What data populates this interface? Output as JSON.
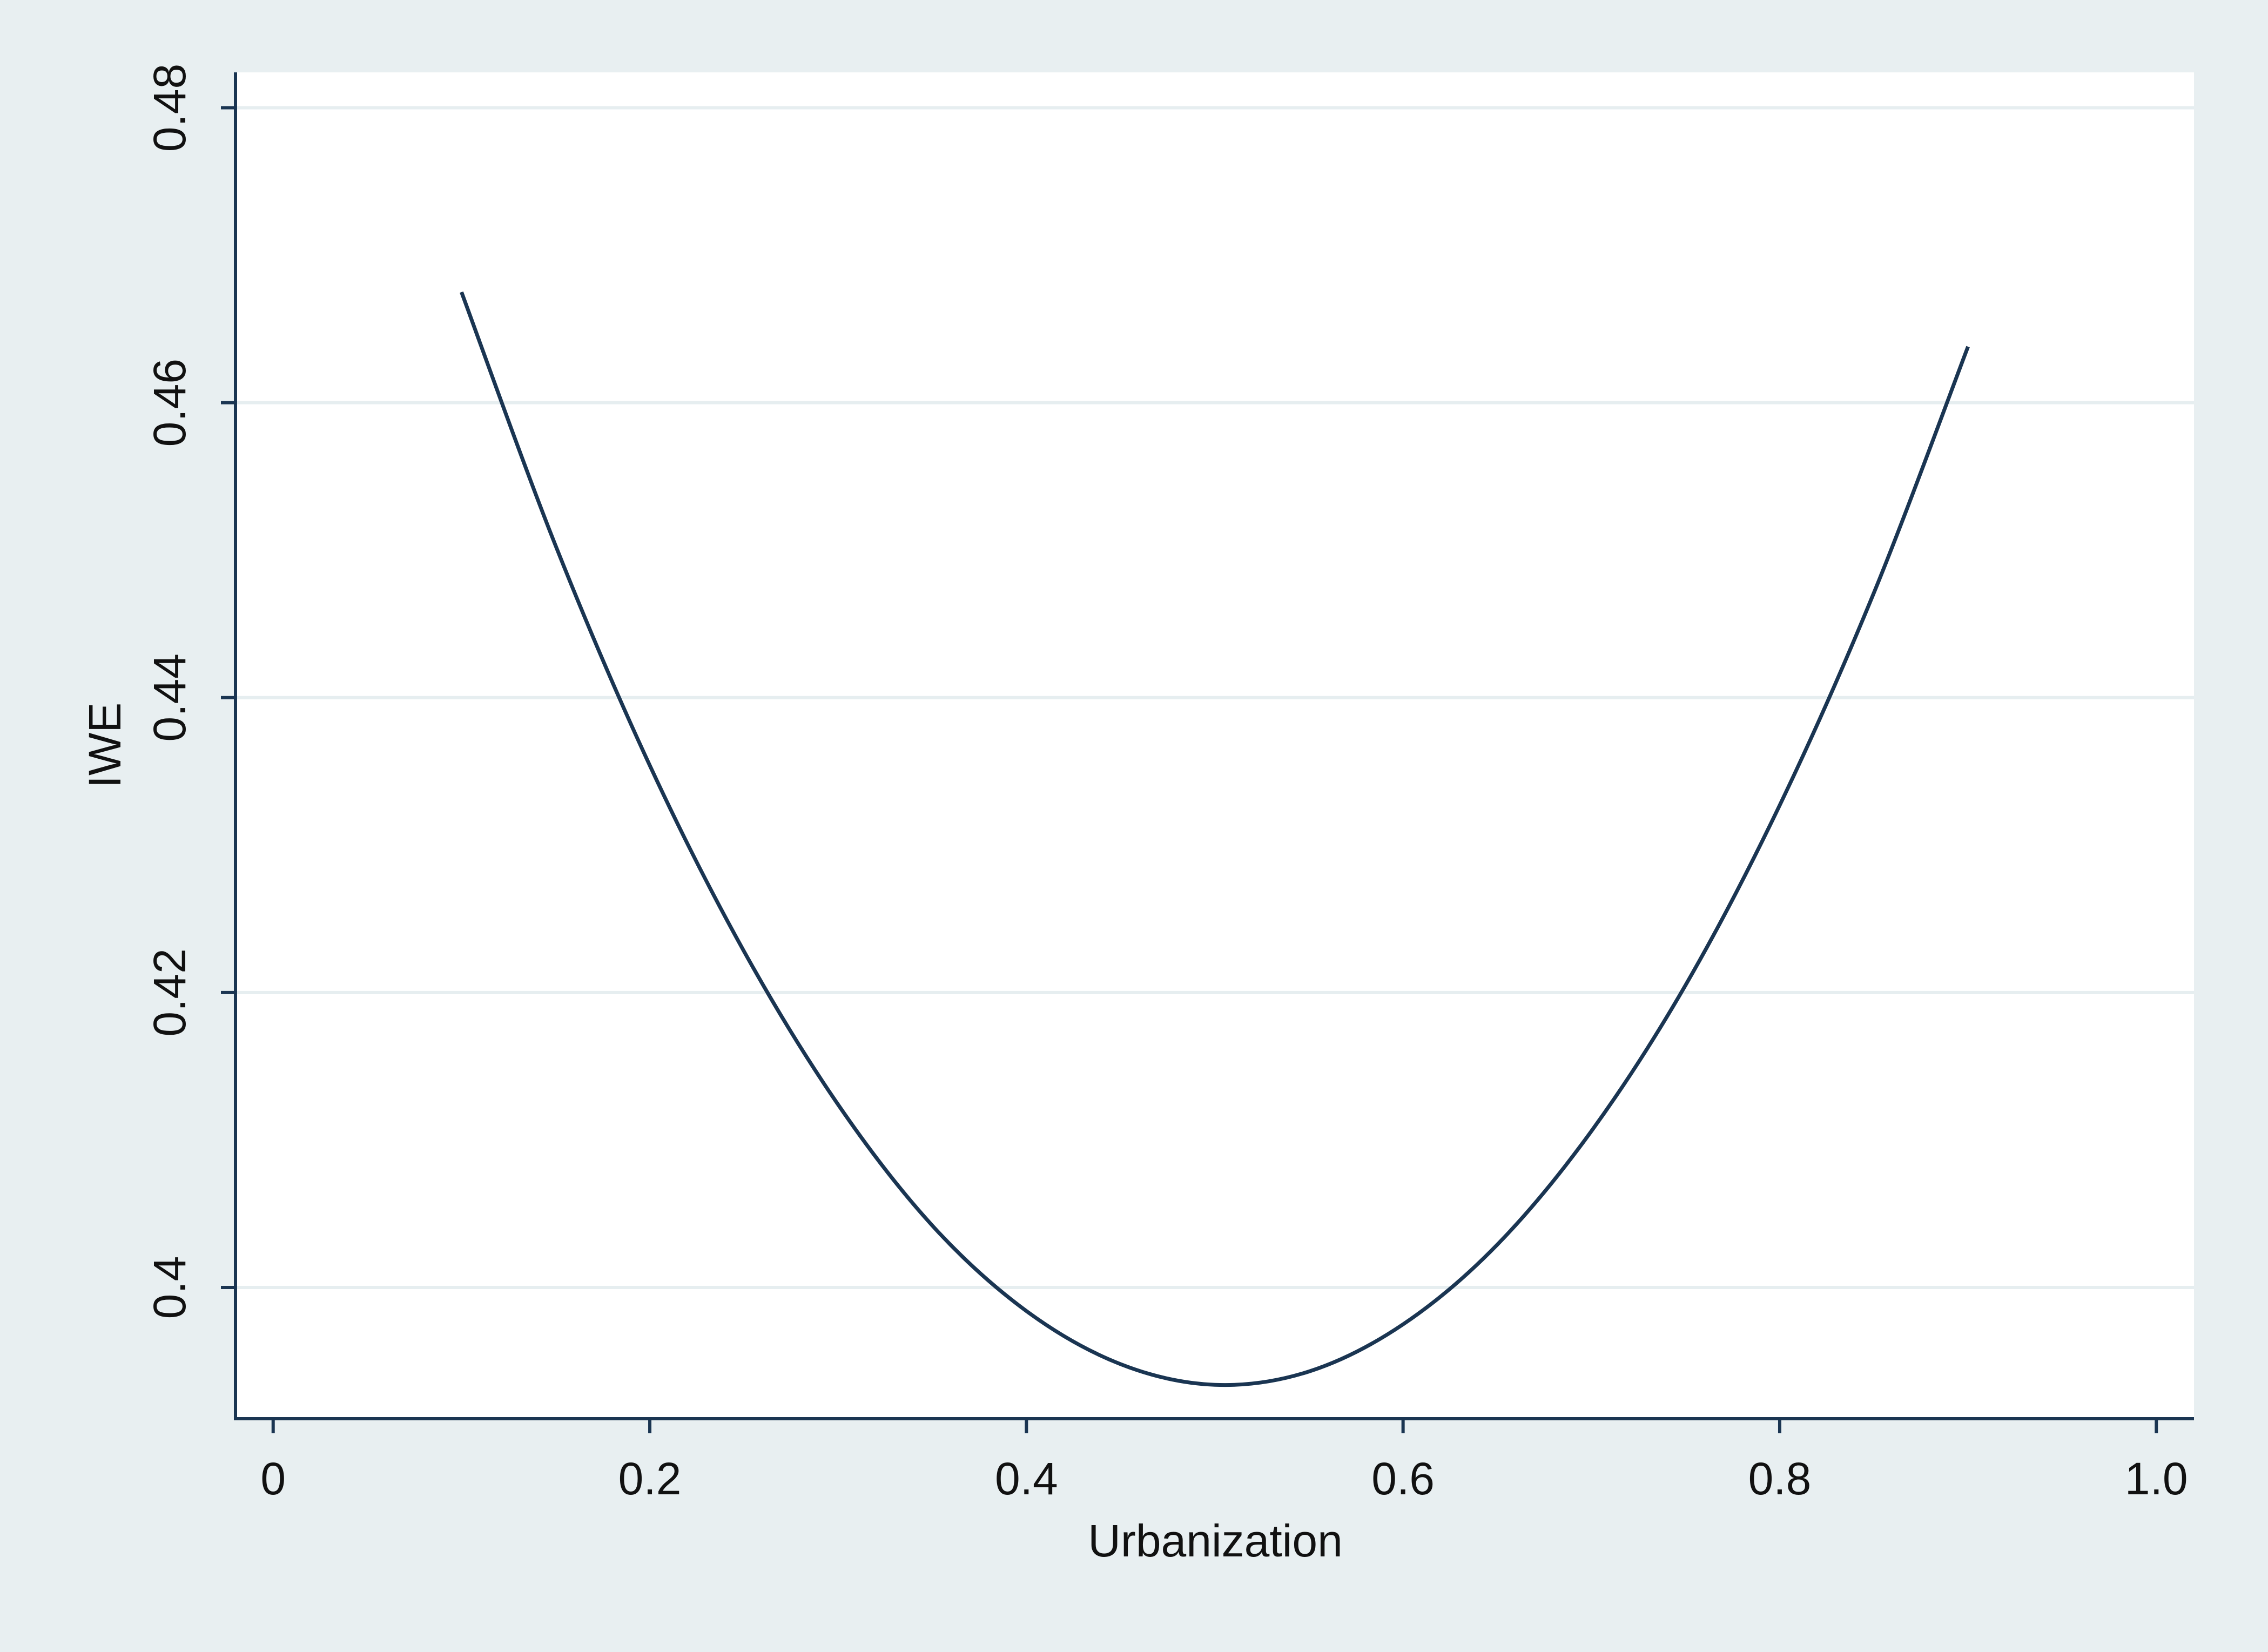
{
  "chart_data": {
    "type": "line",
    "x_label": "Urbanization",
    "y_label": "IWE",
    "x": [
      0.1,
      0.15,
      0.2,
      0.25,
      0.3,
      0.35,
      0.4,
      0.45,
      0.5,
      0.55,
      0.6,
      0.65,
      0.7,
      0.75,
      0.8,
      0.85,
      0.9
    ],
    "series": [
      {
        "color": "#1a3552",
        "values": [
          0.4675,
          0.4503,
          0.4354,
          0.4228,
          0.4124,
          0.4042,
          0.3984,
          0.3948,
          0.3934,
          0.3943,
          0.3975,
          0.4029,
          0.4106,
          0.4205,
          0.4327,
          0.4471,
          0.4638
        ]
      }
    ],
    "xlim": [
      -0.02,
      1.02
    ],
    "xticks": [
      0,
      0.2,
      0.4,
      0.6,
      0.8,
      {
        "value": 1,
        "label": "1.0"
      }
    ],
    "ylim": [
      0.3911,
      0.4824
    ],
    "yticks": [
      0.4,
      0.42,
      0.44,
      0.46,
      0.48
    ],
    "grid": true
  }
}
